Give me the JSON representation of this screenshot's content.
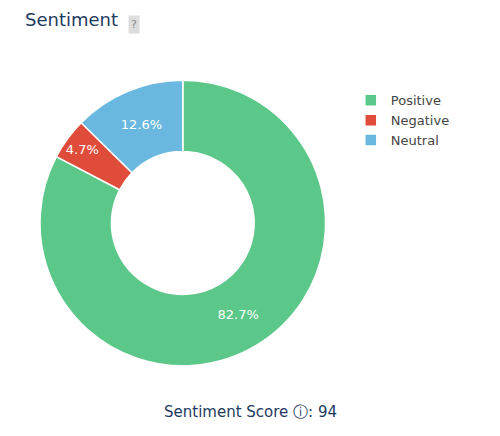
{
  "chart_data": {
    "type": "donut",
    "title": "Sentiment",
    "categories": [
      "Positive",
      "Negative",
      "Neutral"
    ],
    "values": [
      82.7,
      4.7,
      12.6
    ],
    "value_labels": [
      "82.7%",
      "4.7%",
      "12.6%"
    ],
    "data_labels": true,
    "colors": [
      "#5bc88a",
      "#e04c3a",
      "#6ab8e0"
    ],
    "legend": "upper right",
    "annotations": [
      "?",
      "Sentiment Score ⓘ: 94"
    ]
  }
}
